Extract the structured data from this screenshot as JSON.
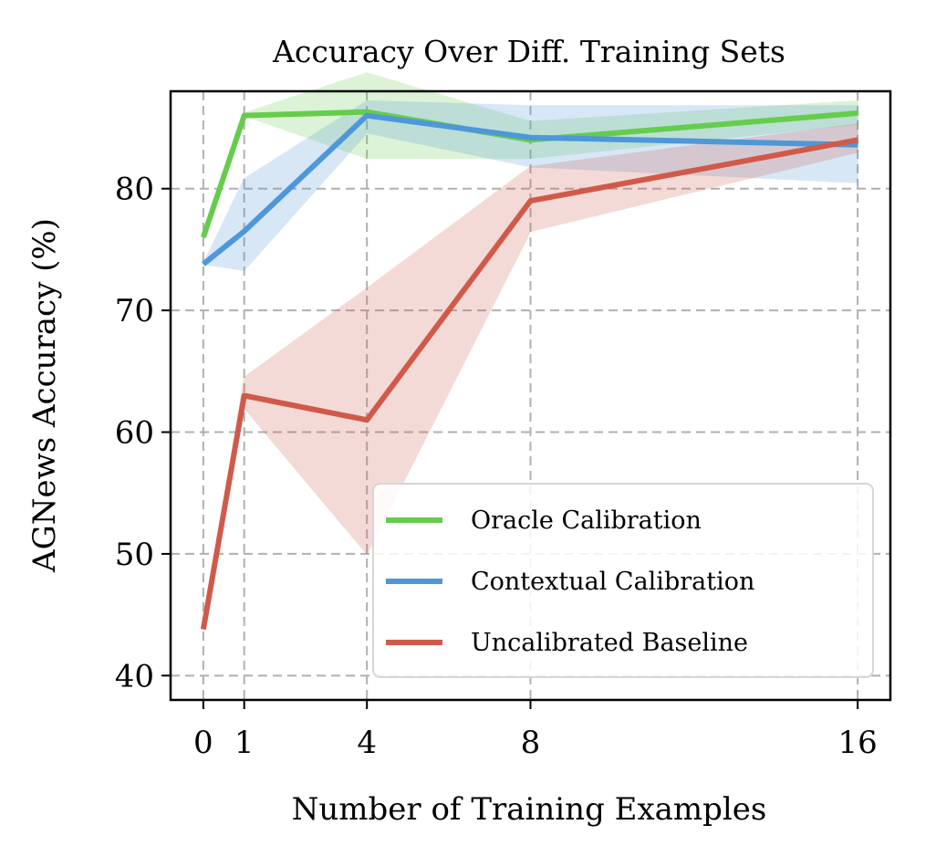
{
  "chart_data": {
    "type": "line",
    "title": "Accuracy Over Diff. Training Sets",
    "xlabel": "Number of Training Examples",
    "ylabel": "AGNews Accuracy (%)",
    "x": [
      0,
      1,
      4,
      8,
      16
    ],
    "xticks": [
      0,
      1,
      4,
      8,
      16
    ],
    "yticks": [
      40,
      50,
      60,
      70,
      80
    ],
    "xlim": [
      -0.8,
      16.8
    ],
    "ylim": [
      38,
      88
    ],
    "grid": true,
    "legend_position": "lower-right",
    "series": [
      {
        "name": "Oracle Calibration",
        "color": "#66cc4c",
        "values": [
          76.0,
          86.0,
          86.3,
          84.0,
          86.2
        ],
        "lower": [
          76.0,
          86.0,
          82.5,
          82.5,
          85.3
        ],
        "upper": [
          76.0,
          86.2,
          89.5,
          85.5,
          87.2
        ]
      },
      {
        "name": "Contextual Calibration",
        "color": "#4e97d8",
        "values": [
          73.8,
          76.5,
          86.0,
          84.2,
          83.6
        ],
        "lower": [
          73.8,
          73.3,
          84.6,
          81.8,
          80.5
        ],
        "upper": [
          73.8,
          80.8,
          87.2,
          86.8,
          86.8
        ]
      },
      {
        "name": "Uncalibrated Baseline",
        "color": "#d05a4a",
        "values": [
          43.8,
          63.0,
          61.0,
          79.0,
          84.0
        ],
        "lower": [
          43.8,
          62.0,
          50.0,
          76.5,
          83.0
        ],
        "upper": [
          43.8,
          64.5,
          71.8,
          81.8,
          85.3
        ]
      }
    ]
  }
}
